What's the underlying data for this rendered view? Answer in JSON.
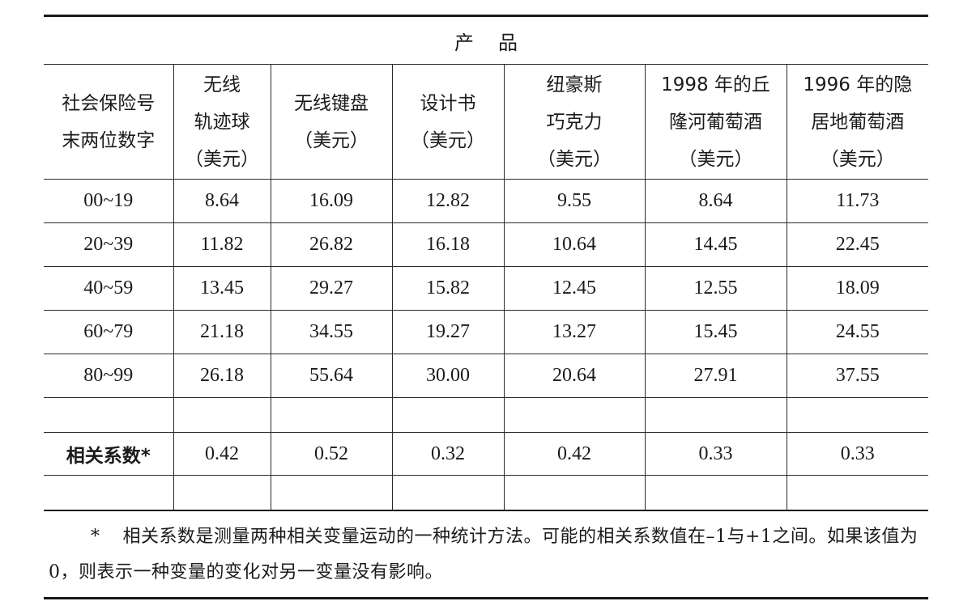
{
  "table": {
    "group_header": "产品",
    "first_col_header": [
      "社会保险号",
      "末两位数字"
    ],
    "columns": [
      {
        "lines": [
          "无线",
          "轨迹球",
          "（美元）"
        ]
      },
      {
        "lines": [
          "无线键盘",
          "（美元）"
        ]
      },
      {
        "lines": [
          "设计书",
          "（美元）"
        ]
      },
      {
        "lines": [
          "纽豪斯",
          "巧克力",
          "（美元）"
        ]
      },
      {
        "lines": [
          "1998 年的丘",
          "隆河葡萄酒",
          "（美元）"
        ]
      },
      {
        "lines": [
          "1996 年的隐",
          "居地葡萄酒",
          "（美元）"
        ]
      }
    ],
    "rows": [
      {
        "range": "00~19",
        "values": [
          "8.64",
          "16.09",
          "12.82",
          "9.55",
          "8.64",
          "11.73"
        ]
      },
      {
        "range": "20~39",
        "values": [
          "11.82",
          "26.82",
          "16.18",
          "10.64",
          "14.45",
          "22.45"
        ]
      },
      {
        "range": "40~59",
        "values": [
          "13.45",
          "29.27",
          "15.82",
          "12.45",
          "12.55",
          "18.09"
        ]
      },
      {
        "range": "60~79",
        "values": [
          "21.18",
          "34.55",
          "19.27",
          "13.27",
          "15.45",
          "24.55"
        ]
      },
      {
        "range": "80~99",
        "values": [
          "26.18",
          "55.64",
          "30.00",
          "20.64",
          "27.91",
          "37.55"
        ]
      }
    ],
    "correlation": {
      "label": "相关系数*",
      "values": [
        "0.42",
        "0.52",
        "0.32",
        "0.42",
        "0.33",
        "0.33"
      ]
    }
  },
  "footnote": {
    "marker": "*",
    "text": "相关系数是测量两种相关变量运动的一种统计方法。可能的相关系数值在–1与+1之间。如果该值为 0，则表示一种变量的变化对另一变量没有影响。"
  }
}
